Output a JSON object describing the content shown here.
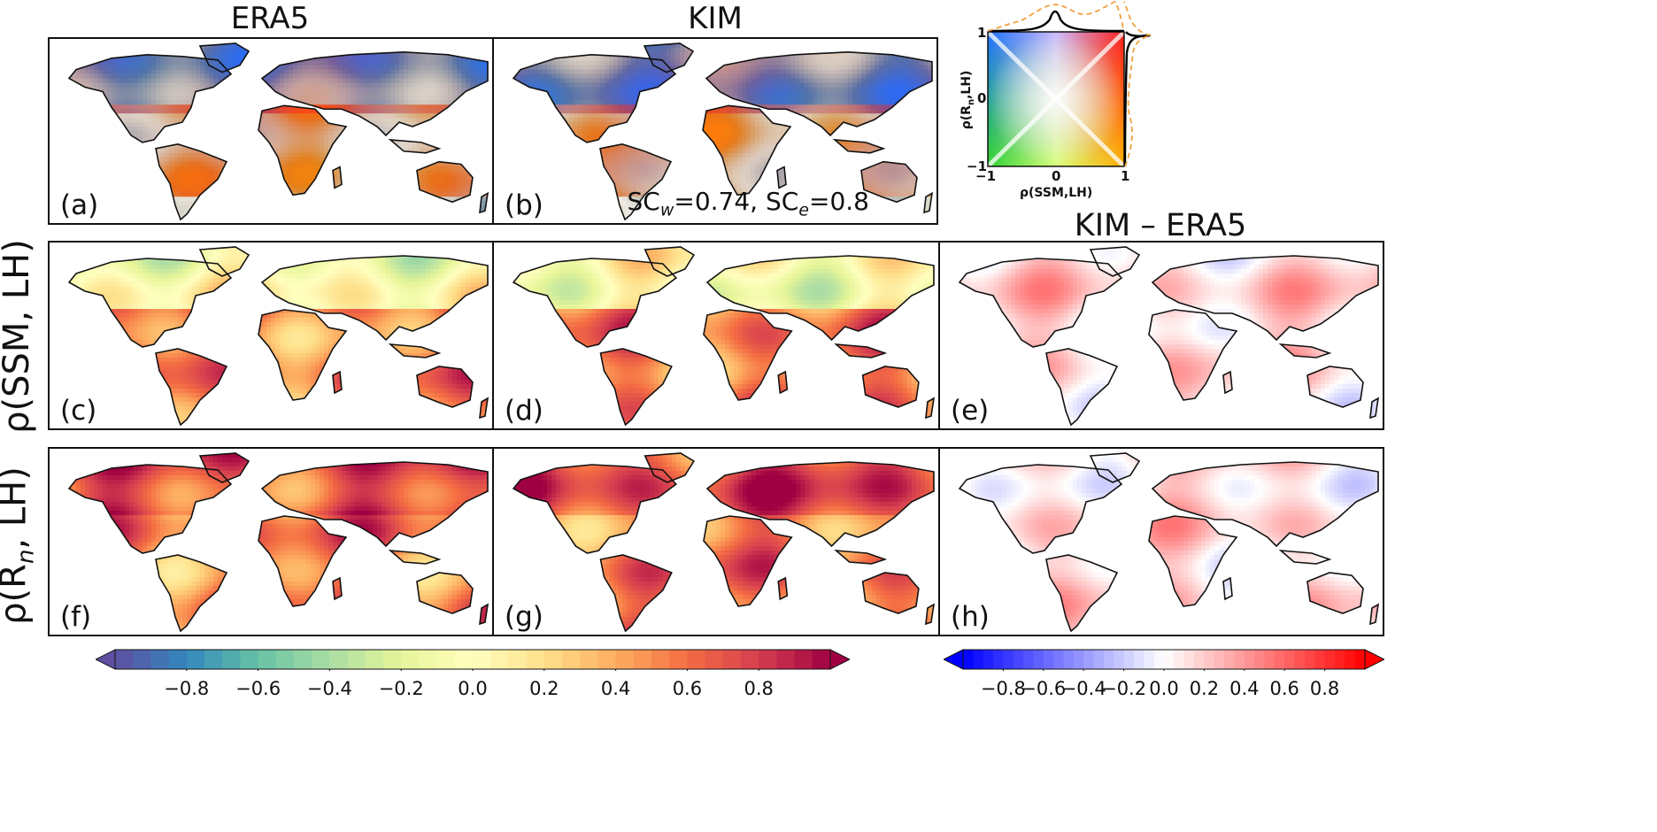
{
  "columns": {
    "era5": "ERA5",
    "kim": "KIM",
    "diff": "KIM – ERA5"
  },
  "rows": {
    "ssm": "ρ(SSM, LH)",
    "rn_prefix": "ρ(R",
    "rn_sub": "n",
    "rn_suffix": ", LH)"
  },
  "panels": [
    {
      "id": "a",
      "label": "(a)",
      "kind": "bivariate"
    },
    {
      "id": "b",
      "label": "(b)",
      "kind": "bivariate"
    },
    {
      "id": "c",
      "label": "(c)",
      "kind": "spectral"
    },
    {
      "id": "d",
      "label": "(d)",
      "kind": "spectral"
    },
    {
      "id": "e",
      "label": "(e)",
      "kind": "diverging"
    },
    {
      "id": "f",
      "label": "(f)",
      "kind": "spectral"
    },
    {
      "id": "g",
      "label": "(g)",
      "kind": "spectral"
    },
    {
      "id": "h",
      "label": "(h)",
      "kind": "diverging"
    }
  ],
  "score": {
    "prefix_w": "SC",
    "sub_w": "w",
    "val_w": "=0.74, ",
    "prefix_e": "SC",
    "sub_e": "e",
    "val_e": "=0.8"
  },
  "bivariate_legend": {
    "x_label": "ρ(SSM,LH)",
    "y_label_prefix": "ρ(R",
    "y_label_sub": "n",
    "y_label_suffix": ",LH)",
    "x_ticks": [
      "−1",
      "0",
      "1"
    ],
    "y_ticks": [
      "−1",
      "0",
      "1"
    ],
    "corner_colors": {
      "top_left": "#1f6fff",
      "top_right": "#ff1a1a",
      "bottom_left": "#2fd62f",
      "bottom_right": "#ffb000",
      "center": "#ffffff"
    },
    "marginal_colors": [
      "#000000",
      "#f0a040"
    ]
  },
  "colorbars": {
    "spectral": {
      "ticks": [
        "−0.8",
        "−0.6",
        "−0.4",
        "−0.2",
        "0.0",
        "0.2",
        "0.4",
        "0.6",
        "0.8"
      ],
      "range": [
        -1,
        1
      ],
      "colors": [
        "#5e4fa2",
        "#3288bd",
        "#66c2a5",
        "#abdda4",
        "#e6f598",
        "#ffffbf",
        "#fee08b",
        "#fdae61",
        "#f46d43",
        "#d53e4f",
        "#9e0142"
      ]
    },
    "diverging": {
      "ticks": [
        "−0.8",
        "−0.6",
        "−0.4",
        "−0.2",
        "0.0",
        "0.2",
        "0.4",
        "0.6",
        "0.8"
      ],
      "range": [
        -1,
        1
      ],
      "colors": [
        "#0000ff",
        "#ffffff",
        "#ff0000"
      ]
    }
  }
}
